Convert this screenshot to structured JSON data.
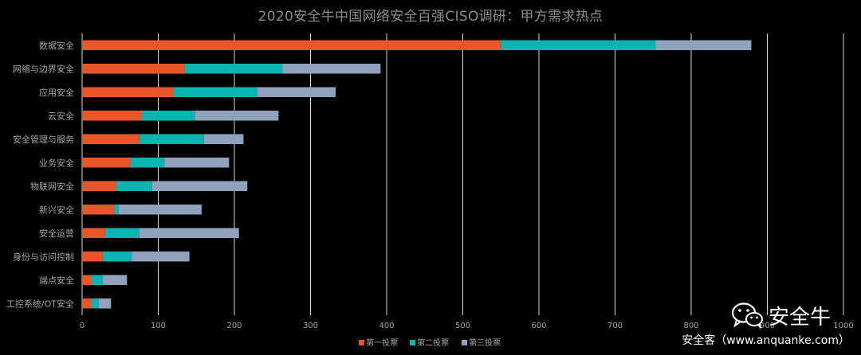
{
  "chart_data": {
    "type": "bar",
    "orientation": "horizontal",
    "stacked": true,
    "title": "2020安全牛中国网络安全百强CISO调研：甲方需求热点",
    "categories": [
      "数据安全",
      "网络与边界安全",
      "应用安全",
      "云安全",
      "安全管理与服务",
      "业务安全",
      "物联网安全",
      "新兴安全",
      "安全运营",
      "身份与访问控制",
      "端点安全",
      "工控系统/OT安全"
    ],
    "series": [
      {
        "name": "第一投票",
        "color": "#e8562a",
        "values": [
          550,
          135,
          120,
          78,
          75,
          63,
          45,
          42,
          30,
          27,
          12,
          12
        ]
      },
      {
        "name": "第二投票",
        "color": "#0bb4b3",
        "values": [
          203,
          128,
          110,
          70,
          85,
          45,
          47,
          6,
          45,
          38,
          15,
          10
        ]
      },
      {
        "name": "第三投票",
        "color": "#8fa1bd",
        "values": [
          126,
          129,
          103,
          110,
          52,
          85,
          125,
          109,
          131,
          76,
          32,
          16
        ]
      }
    ],
    "xlim": [
      0,
      1000
    ],
    "xticks": [
      "0",
      "100",
      "200",
      "300",
      "400",
      "500",
      "600",
      "700",
      "800",
      "900",
      "1000"
    ],
    "grid": true,
    "legend_position": "bottom"
  },
  "watermark": {
    "logo_text": "安全牛",
    "source_text": "安全客（www.anquanke.com）",
    "icon": "wechat-icon"
  }
}
